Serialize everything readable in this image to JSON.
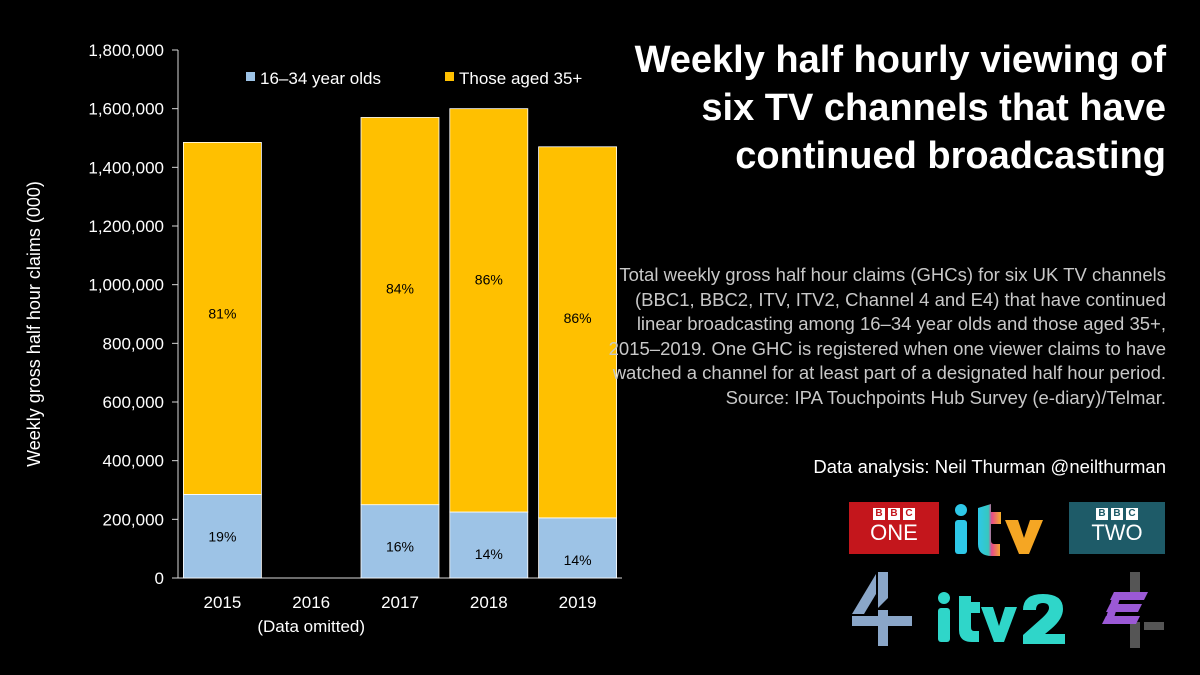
{
  "header": {
    "title": "Weekly half hourly viewing of six TV channels that have continued broadcasting"
  },
  "description": "Total weekly gross half hour claims (GHCs) for six UK TV channels (BBC1, BBC2, ITV, ITV2, Channel 4 and E4) that have continued linear broadcasting among 16–34 year olds and those aged 35+, 2015–2019. One GHC is registered when one viewer claims to have watched a channel for at least part of a designated half hour period. Source: IPA Touchpoints Hub Survey (e-diary)/Telmar.",
  "credit": "Data analysis: Neil Thurman @neilthurman",
  "logos": {
    "bbc_one": {
      "brand": "BBC",
      "name": "ONE",
      "color": "#c4161c",
      "icon": "bbc-one-logo"
    },
    "itv": {
      "name": "itv",
      "icon": "itv-logo"
    },
    "bbc_two": {
      "brand": "BBC",
      "name": "TWO",
      "color": "#1e5b68",
      "icon": "bbc-two-logo"
    },
    "channel4": {
      "name": "4",
      "icon": "channel4-logo",
      "color": "#8aa6c8"
    },
    "itv2": {
      "name": "itv2",
      "color": "#2fd6c9",
      "icon": "itv2-logo"
    },
    "e4": {
      "name": "E",
      "color": "#9b59d6",
      "icon": "e4-logo"
    }
  },
  "chart_data": {
    "type": "bar",
    "stacked": true,
    "categories": [
      "2015",
      "2016",
      "2017",
      "2018",
      "2019"
    ],
    "category_note": {
      "2016": "(Data omitted)"
    },
    "ylabel": "Weekly gross half hour claims (000)",
    "ylim": [
      0,
      1800000
    ],
    "yticks": [
      "0",
      "200,000",
      "400,000",
      "600,000",
      "800,000",
      "1,000,000",
      "1,200,000",
      "1,400,000",
      "1,600,000",
      "1,800,000"
    ],
    "ytick_values": [
      0,
      200000,
      400000,
      600000,
      800000,
      1000000,
      1200000,
      1400000,
      1600000,
      1800000
    ],
    "grid": false,
    "legend": "top",
    "series": [
      {
        "name": "16–34 year olds",
        "color": "#9dc3e6",
        "values": [
          285000,
          null,
          250000,
          225000,
          205000
        ],
        "labels": [
          "19%",
          "",
          "16%",
          "14%",
          "14%"
        ]
      },
      {
        "name": "Those aged 35+",
        "color": "#ffc000",
        "values": [
          1200000,
          null,
          1320000,
          1375000,
          1265000
        ],
        "labels": [
          "81%",
          "",
          "84%",
          "86%",
          "86%"
        ]
      }
    ]
  }
}
